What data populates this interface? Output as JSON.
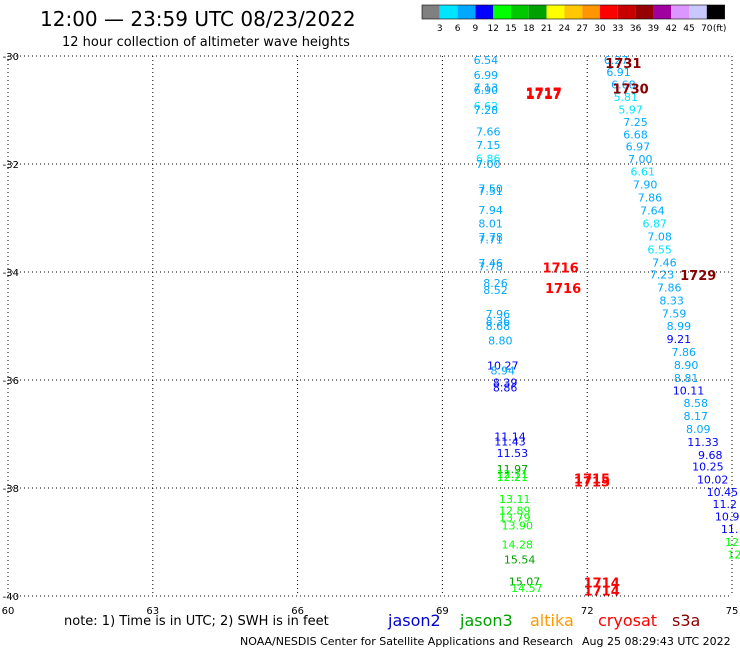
{
  "header": {
    "title": "12:00 — 23:59 UTC 08/23/2022",
    "subtitle": "12 hour collection of altimeter wave heights"
  },
  "colorbar": {
    "labels": [
      "3",
      "6",
      "9",
      "12",
      "15",
      "18",
      "21",
      "24",
      "27",
      "30",
      "33",
      "36",
      "39",
      "42",
      "45",
      "70"
    ],
    "unit": "(ft)",
    "colors": [
      "#808080",
      "#00e5ff",
      "#00a8ff",
      "#0000ff",
      "#00ff00",
      "#00c800",
      "#00a000",
      "#ffff00",
      "#ffc800",
      "#ff9600",
      "#ff0000",
      "#c80000",
      "#960000",
      "#a000a0",
      "#dc96ff",
      "#c8c8ff",
      "#000000"
    ]
  },
  "note": "note:  1) Time is in UTC;  2) SWH is in feet",
  "satellites": [
    {
      "name": "jason2",
      "color": "#0000cc"
    },
    {
      "name": "jason3",
      "color": "#00a000"
    },
    {
      "name": "altika",
      "color": "#ff9900"
    },
    {
      "name": "cryosat",
      "color": "#ff0000"
    },
    {
      "name": "s3a",
      "color": "#880000"
    }
  ],
  "credit_left": "NOAA/NESDIS Center for Satellite Applications and Research",
  "credit_right": "Aug 25 08:29:43 UTC 2022",
  "chart_data": {
    "type": "scatter",
    "xlim": [
      60,
      75
    ],
    "ylim": [
      -40,
      -30
    ],
    "xticks": [
      "60",
      "63",
      "66",
      "69",
      "72",
      "75"
    ],
    "yticks": [
      "-30",
      "-32",
      "-34",
      "-36",
      "-38",
      "-40"
    ],
    "grid": true,
    "track1": [
      {
        "x": 69.9,
        "y": -30.07,
        "v": "6.54",
        "c": "#00a8ff"
      },
      {
        "x": 69.9,
        "y": -30.35,
        "v": "6.99",
        "c": "#00a8ff"
      },
      {
        "x": 69.9,
        "y": -30.58,
        "v": "7.13",
        "c": "#00a8ff"
      },
      {
        "x": 69.9,
        "y": -30.63,
        "v": "6.90",
        "c": "#00a8ff"
      },
      {
        "x": 69.9,
        "y": -30.93,
        "v": "6.62",
        "c": "#00e5ff"
      },
      {
        "x": 69.9,
        "y": -31.0,
        "v": "7.28",
        "c": "#00a8ff"
      },
      {
        "x": 69.95,
        "y": -31.4,
        "v": "7.66",
        "c": "#00a8ff"
      },
      {
        "x": 69.95,
        "y": -31.65,
        "v": "7.15",
        "c": "#00a8ff"
      },
      {
        "x": 69.95,
        "y": -31.9,
        "v": "6.86",
        "c": "#00e5ff"
      },
      {
        "x": 69.95,
        "y": -32.0,
        "v": "7.00",
        "c": "#00a8ff"
      },
      {
        "x": 70.0,
        "y": -32.45,
        "v": "7.50",
        "c": "#00a8ff"
      },
      {
        "x": 70.0,
        "y": -32.5,
        "v": "7.51",
        "c": "#00a8ff"
      },
      {
        "x": 70.0,
        "y": -32.85,
        "v": "7.94",
        "c": "#00a8ff"
      },
      {
        "x": 70.0,
        "y": -33.1,
        "v": "8.01",
        "c": "#00a8ff"
      },
      {
        "x": 70.0,
        "y": -33.35,
        "v": "7.78",
        "c": "#00a8ff"
      },
      {
        "x": 70.0,
        "y": -33.4,
        "v": "7.71",
        "c": "#00a8ff"
      },
      {
        "x": 70.0,
        "y": -33.83,
        "v": "7.46",
        "c": "#00a8ff"
      },
      {
        "x": 70.0,
        "y": -33.9,
        "v": "7.78",
        "c": "#00a8ff"
      },
      {
        "x": 70.1,
        "y": -34.2,
        "v": "8.26",
        "c": "#00a8ff"
      },
      {
        "x": 70.1,
        "y": -34.33,
        "v": "8.52",
        "c": "#00a8ff"
      },
      {
        "x": 70.15,
        "y": -34.78,
        "v": "7.96",
        "c": "#00a8ff"
      },
      {
        "x": 70.15,
        "y": -34.91,
        "v": "8.36",
        "c": "#00a8ff"
      },
      {
        "x": 70.15,
        "y": -35.0,
        "v": "8.68",
        "c": "#00a8ff"
      },
      {
        "x": 70.2,
        "y": -35.27,
        "v": "8.80",
        "c": "#00a8ff"
      },
      {
        "x": 70.25,
        "y": -35.73,
        "v": "10.27",
        "c": "#0000ff"
      },
      {
        "x": 70.25,
        "y": -35.82,
        "v": "8.94",
        "c": "#00a8ff"
      },
      {
        "x": 70.3,
        "y": -36.05,
        "v": "8.39",
        "c": "#0000ff"
      },
      {
        "x": 70.3,
        "y": -36.14,
        "v": "8.86",
        "c": "#0000ff"
      },
      {
        "x": 70.4,
        "y": -37.05,
        "v": "11.14",
        "c": "#0000ff"
      },
      {
        "x": 70.4,
        "y": -37.14,
        "v": "11.43",
        "c": "#0000ff"
      },
      {
        "x": 70.45,
        "y": -37.35,
        "v": "11.53",
        "c": "#0000ff"
      },
      {
        "x": 70.45,
        "y": -37.65,
        "v": "11.97",
        "c": "#00a000"
      },
      {
        "x": 70.45,
        "y": -37.74,
        "v": "12.11",
        "c": "#00ff00"
      },
      {
        "x": 70.45,
        "y": -37.8,
        "v": "12.21",
        "c": "#00ff00"
      },
      {
        "x": 70.5,
        "y": -38.2,
        "v": "13.11",
        "c": "#00ff00"
      },
      {
        "x": 70.5,
        "y": -38.42,
        "v": "12.89",
        "c": "#00ff00"
      },
      {
        "x": 70.5,
        "y": -38.55,
        "v": "13.79",
        "c": "#00ff00"
      },
      {
        "x": 70.55,
        "y": -38.69,
        "v": "13.90",
        "c": "#00ff00"
      },
      {
        "x": 70.55,
        "y": -39.05,
        "v": "14.28",
        "c": "#00ff00"
      },
      {
        "x": 70.6,
        "y": -39.32,
        "v": "15.54",
        "c": "#00a000"
      },
      {
        "x": 70.7,
        "y": -39.73,
        "v": "15.07",
        "c": "#00a000"
      },
      {
        "x": 70.75,
        "y": -39.85,
        "v": "14.57",
        "c": "#00ff00"
      }
    ],
    "track2": [
      {
        "x": 72.6,
        "y": -30.07,
        "v": "6.27",
        "c": "#00a8ff"
      },
      {
        "x": 72.65,
        "y": -30.3,
        "v": "6.91",
        "c": "#00a8ff"
      },
      {
        "x": 72.75,
        "y": -30.53,
        "v": "6.68",
        "c": "#00a8ff"
      },
      {
        "x": 72.8,
        "y": -30.76,
        "v": "5.81",
        "c": "#00e5ff"
      },
      {
        "x": 72.9,
        "y": -30.99,
        "v": "5.97",
        "c": "#00e5ff"
      },
      {
        "x": 73.0,
        "y": -31.22,
        "v": "7.25",
        "c": "#00a8ff"
      },
      {
        "x": 73.0,
        "y": -31.45,
        "v": "6.68",
        "c": "#00a8ff"
      },
      {
        "x": 73.05,
        "y": -31.68,
        "v": "6.97",
        "c": "#00a8ff"
      },
      {
        "x": 73.1,
        "y": -31.91,
        "v": "7.00",
        "c": "#00a8ff"
      },
      {
        "x": 73.15,
        "y": -32.14,
        "v": "6.61",
        "c": "#00e5ff"
      },
      {
        "x": 73.2,
        "y": -32.38,
        "v": "7.90",
        "c": "#00a8ff"
      },
      {
        "x": 73.3,
        "y": -32.62,
        "v": "7.86",
        "c": "#00a8ff"
      },
      {
        "x": 73.35,
        "y": -32.86,
        "v": "7.64",
        "c": "#00a8ff"
      },
      {
        "x": 73.4,
        "y": -33.1,
        "v": "6.87",
        "c": "#00e5ff"
      },
      {
        "x": 73.5,
        "y": -33.34,
        "v": "7.08",
        "c": "#00a8ff"
      },
      {
        "x": 73.5,
        "y": -33.58,
        "v": "6.55",
        "c": "#00e5ff"
      },
      {
        "x": 73.6,
        "y": -33.82,
        "v": "7.46",
        "c": "#00a8ff"
      },
      {
        "x": 73.55,
        "y": -34.05,
        "v": "7.23",
        "c": "#00a8ff"
      },
      {
        "x": 73.7,
        "y": -34.29,
        "v": "7.86",
        "c": "#00a8ff"
      },
      {
        "x": 73.75,
        "y": -34.53,
        "v": "8.33",
        "c": "#00a8ff"
      },
      {
        "x": 73.8,
        "y": -34.77,
        "v": "7.59",
        "c": "#00a8ff"
      },
      {
        "x": 73.9,
        "y": -35.0,
        "v": "8.99",
        "c": "#00a8ff"
      },
      {
        "x": 73.9,
        "y": -35.24,
        "v": "9.21",
        "c": "#0000ff"
      },
      {
        "x": 74.0,
        "y": -35.48,
        "v": "7.86",
        "c": "#00a8ff"
      },
      {
        "x": 74.05,
        "y": -35.72,
        "v": "8.90",
        "c": "#00a8ff"
      },
      {
        "x": 74.05,
        "y": -35.96,
        "v": "8.81",
        "c": "#00a8ff"
      },
      {
        "x": 74.1,
        "y": -36.19,
        "v": "10.11",
        "c": "#0000ff"
      },
      {
        "x": 74.25,
        "y": -36.43,
        "v": "8.58",
        "c": "#00a8ff"
      },
      {
        "x": 74.25,
        "y": -36.67,
        "v": "8.17",
        "c": "#00a8ff"
      },
      {
        "x": 74.3,
        "y": -36.91,
        "v": "8.09",
        "c": "#00a8ff"
      },
      {
        "x": 74.4,
        "y": -37.15,
        "v": "11.33",
        "c": "#0000ff"
      },
      {
        "x": 74.55,
        "y": -37.39,
        "v": "9.68",
        "c": "#0000ff"
      },
      {
        "x": 74.5,
        "y": -37.6,
        "v": "10.25",
        "c": "#0000ff"
      },
      {
        "x": 74.6,
        "y": -37.84,
        "v": "10.02",
        "c": "#0000ff"
      },
      {
        "x": 74.8,
        "y": -38.07,
        "v": "10.45",
        "c": "#0000ff"
      },
      {
        "x": 74.85,
        "y": -38.3,
        "v": "11.2",
        "c": "#0000ff"
      },
      {
        "x": 74.9,
        "y": -38.53,
        "v": "10.9",
        "c": "#0000ff"
      },
      {
        "x": 74.95,
        "y": -38.76,
        "v": "11.",
        "c": "#0000ff"
      },
      {
        "x": 75.0,
        "y": -39.0,
        "v": "12",
        "c": "#00ff00"
      },
      {
        "x": 75.05,
        "y": -39.23,
        "v": "12",
        "c": "#00ff00"
      }
    ],
    "times": [
      {
        "x": 71.1,
        "y": -30.68,
        "v": "1717",
        "c": "#ff0000"
      },
      {
        "x": 71.1,
        "y": -30.7,
        "v": "1717",
        "c": "#ff0000"
      },
      {
        "x": 72.75,
        "y": -30.13,
        "v": "1731",
        "c": "#880000"
      },
      {
        "x": 72.9,
        "y": -30.6,
        "v": "1730",
        "c": "#880000"
      },
      {
        "x": 71.45,
        "y": -33.92,
        "v": "1716",
        "c": "#ff0000"
      },
      {
        "x": 71.5,
        "y": -34.3,
        "v": "1716",
        "c": "#ff0000"
      },
      {
        "x": 74.3,
        "y": -34.06,
        "v": "1729",
        "c": "#880000"
      },
      {
        "x": 72.1,
        "y": -37.82,
        "v": "1715",
        "c": "#ff0000"
      },
      {
        "x": 72.1,
        "y": -37.88,
        "v": "1715",
        "c": "#ff0000"
      },
      {
        "x": 72.3,
        "y": -39.75,
        "v": "1714",
        "c": "#ff0000"
      },
      {
        "x": 72.3,
        "y": -39.9,
        "v": "1714",
        "c": "#ff0000"
      }
    ]
  }
}
